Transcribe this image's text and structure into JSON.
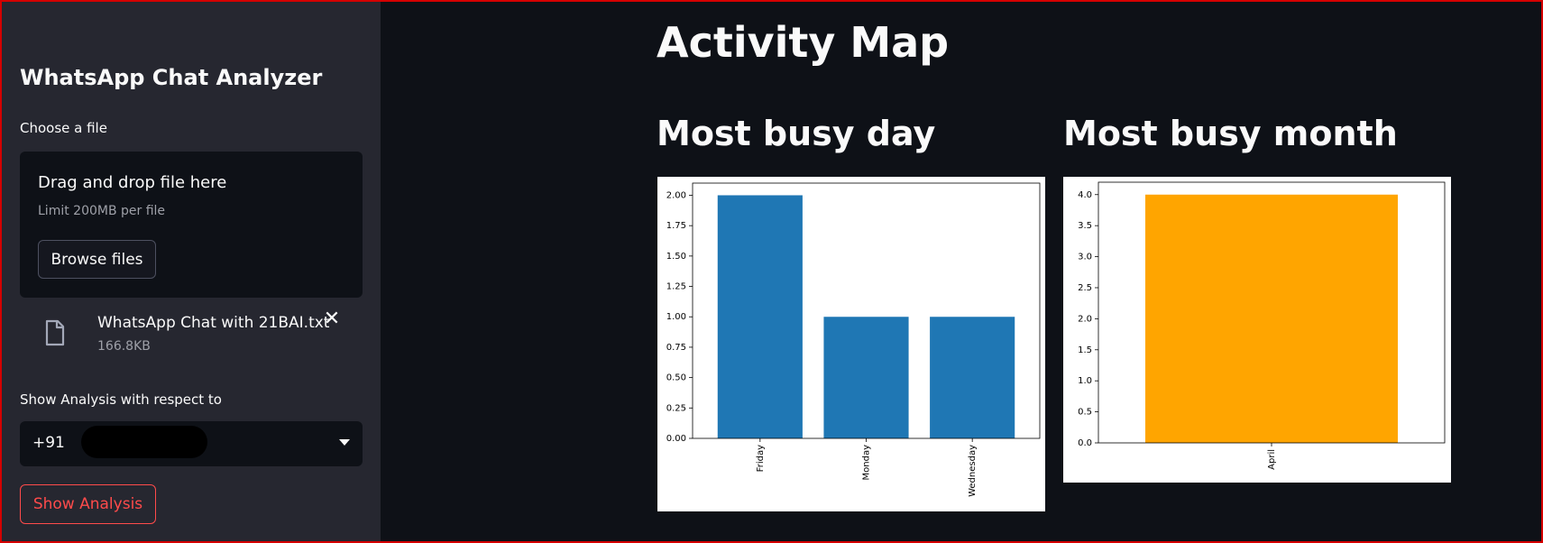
{
  "sidebar": {
    "title": "WhatsApp Chat Analyzer",
    "uploader_label": "Choose a file",
    "dropzone_text": "Drag and drop file here",
    "dropzone_limit": "Limit 200MB per file",
    "browse_label": "Browse files",
    "file": {
      "name": "WhatsApp Chat with 21BAI.txt",
      "size": "166.8KB"
    },
    "select_label": "Show Analysis with respect to",
    "select_value": "+91",
    "analysis_button": "Show Analysis"
  },
  "main": {
    "title": "Activity Map",
    "day_title": "Most busy day",
    "month_title": "Most busy month"
  },
  "colors": {
    "accent": "#ff4b4b",
    "day_bar": "#1f77b4",
    "month_bar": "#ffa500"
  },
  "chart_data": [
    {
      "type": "bar",
      "categories": [
        "Friday",
        "Monday",
        "Wednesday"
      ],
      "values": [
        2,
        1,
        1
      ],
      "color": "#1f77b4",
      "ylim": [
        0,
        2.1
      ],
      "yticks": [
        "0.00",
        "0.25",
        "0.50",
        "0.75",
        "1.00",
        "1.25",
        "1.50",
        "1.75",
        "2.00"
      ],
      "xtick_rotation": "vertical",
      "grid": false
    },
    {
      "type": "bar",
      "categories": [
        "April"
      ],
      "values": [
        4
      ],
      "color": "#ffa500",
      "ylim": [
        0,
        4.2
      ],
      "yticks": [
        "0.0",
        "0.5",
        "1.0",
        "1.5",
        "2.0",
        "2.5",
        "3.0",
        "3.5",
        "4.0"
      ],
      "xtick_rotation": "vertical",
      "grid": false
    }
  ]
}
